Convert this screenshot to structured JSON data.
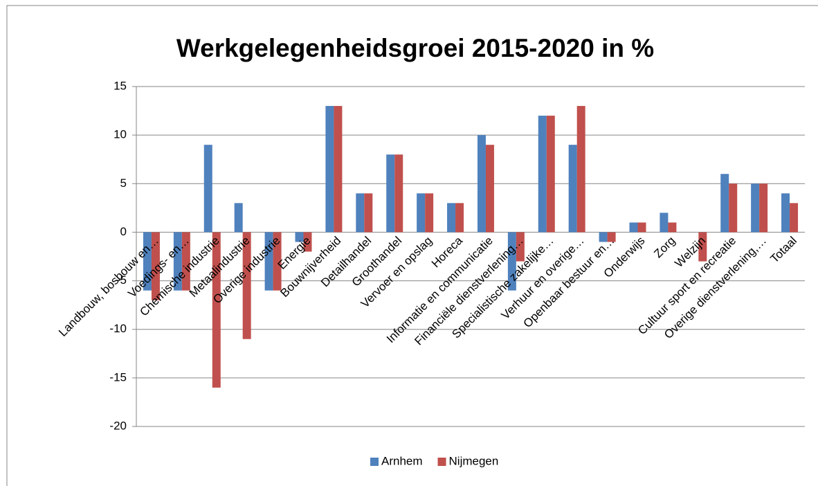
{
  "chart_data": {
    "type": "bar",
    "title": "Werkgelegenheidsgroei 2015-2020 in %",
    "categories": [
      "Landbouw, bosbouw en…",
      "Voedings- en…",
      "Chemische industrie",
      "Metaalindustrie",
      "Overige industrie",
      "Energie",
      "Bouwnijverheid",
      "Detailhandel",
      "Groothandel",
      "Vervoer en opslag",
      "Horeca",
      "Informatie en communicatie",
      "Financiële dienstverlening…",
      "Specialistische zakelijke…",
      "Verhuur en overige…",
      "Openbaar bestuur en…",
      "Onderwijs",
      "Zorg",
      "Welzijn",
      "Cultuur sport en recreatie",
      "Overige dienstverlening,…",
      "Totaal"
    ],
    "series": [
      {
        "name": "Arnhem",
        "color": "#4f81bd",
        "values": [
          -6,
          -6,
          9,
          3,
          -6,
          -1,
          13,
          4,
          8,
          4,
          3,
          10,
          -6,
          12,
          9,
          -1,
          1,
          2,
          0,
          6,
          5,
          4
        ]
      },
      {
        "name": "Nijmegen",
        "color": "#c0504d",
        "values": [
          -7,
          -6,
          -16,
          -11,
          -6,
          -2,
          13,
          4,
          8,
          4,
          3,
          9,
          -3,
          12,
          13,
          -1,
          1,
          1,
          -3,
          5,
          5,
          3
        ]
      }
    ],
    "ylim": [
      -20,
      15
    ],
    "yticks": [
      -20,
      -15,
      -10,
      -5,
      0,
      5,
      10,
      15
    ],
    "grid": true,
    "legend": "bottom"
  }
}
